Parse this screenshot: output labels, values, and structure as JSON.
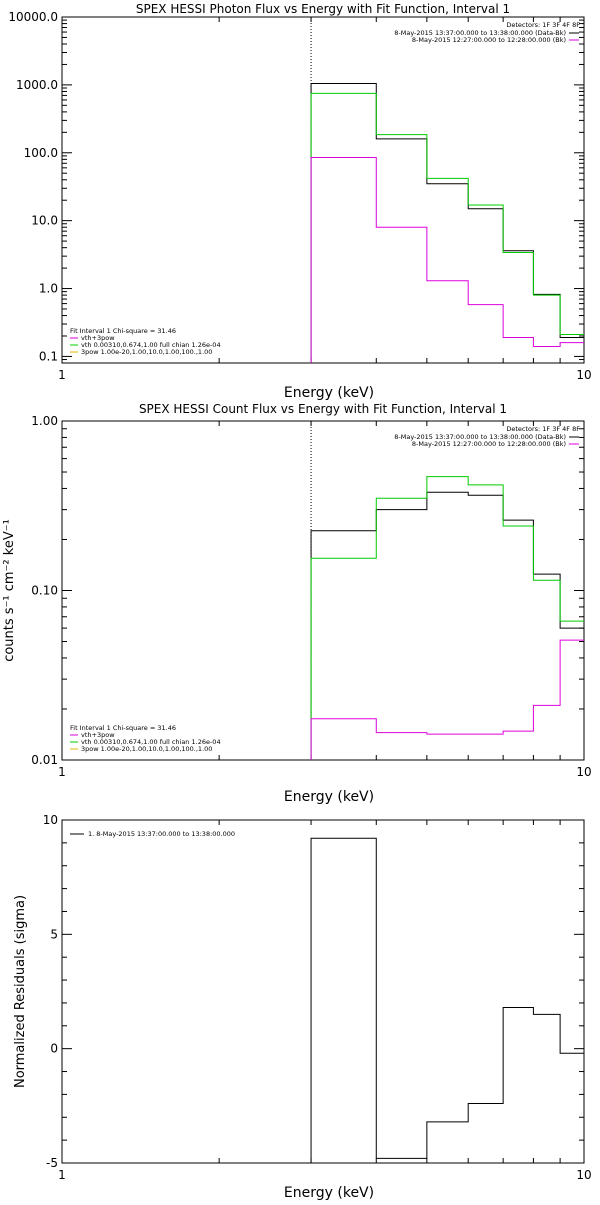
{
  "chart_data": [
    {
      "type": "line",
      "title": "SPEX HESSI Photon Flux vs Energy with Fit Function, Interval 1",
      "xlabel": "Energy (keV)",
      "ylabel": "",
      "xscale": "log",
      "yscale": "log",
      "xlim": [
        1,
        10
      ],
      "ylim": [
        0.08,
        10000
      ],
      "xticks": [
        {
          "v": 1,
          "label": "1"
        },
        {
          "v": 10,
          "label": "10"
        }
      ],
      "yticks": [
        {
          "v": 0.1,
          "label": "0.1"
        },
        {
          "v": 1,
          "label": "1.0"
        },
        {
          "v": 10,
          "label": "10.0"
        },
        {
          "v": 100,
          "label": "100.0"
        },
        {
          "v": 1000,
          "label": "1000.0"
        },
        {
          "v": 10000,
          "label": "10000.0"
        }
      ],
      "vline": 3,
      "edges": [
        3,
        4,
        5,
        6,
        7,
        8,
        9,
        10
      ],
      "series": [
        {
          "color": "#000000",
          "values": [
            1050,
            160,
            35,
            15,
            3.6,
            0.82,
            0.19
          ]
        },
        {
          "color": "#00cc00",
          "values": [
            750,
            185,
            42,
            17,
            3.4,
            0.8,
            0.21
          ]
        },
        {
          "color": "#dd00dd",
          "values": [
            85,
            8,
            1.3,
            0.58,
            0.19,
            0.14,
            0.16
          ]
        }
      ],
      "legend_header": "Detectors: 1F 3F 4F 8F",
      "legend": [
        {
          "label": "8-May-2015 13:37:00.000 to 13:38:00.000 (Data-Bk)",
          "color": "#000000"
        },
        {
          "label": "8-May-2015 12:27:00.000 to 12:28:00.000 (Bk)",
          "color": "#dd00dd"
        }
      ],
      "fit_header": "Fit Interval  1    Chi-square = 31.46",
      "fit_legend": [
        {
          "label": "vth+3pow",
          "color": "#dd00dd"
        },
        {
          "label": "vth 0.00310,0.674,1.00  full chian 1.26e-04",
          "color": "#00cc00"
        },
        {
          "label": "3pow 1.00e-20,1.00,10.0,1.00,100.,1.00",
          "color": "#e0b800"
        }
      ]
    },
    {
      "type": "line",
      "title": "SPEX HESSI Count Flux vs Energy with Fit Function, Interval 1",
      "xlabel": "Energy (keV)",
      "ylabel": "counts s⁻¹ cm⁻² keV⁻¹",
      "xscale": "log",
      "yscale": "log",
      "xlim": [
        1,
        10
      ],
      "ylim": [
        0.01,
        1.0
      ],
      "xticks": [
        {
          "v": 1,
          "label": "1"
        },
        {
          "v": 10,
          "label": "10"
        }
      ],
      "yticks": [
        {
          "v": 0.01,
          "label": "0.01"
        },
        {
          "v": 0.1,
          "label": "0.10"
        },
        {
          "v": 1.0,
          "label": "1.00"
        }
      ],
      "vline": 3,
      "edges": [
        3,
        4,
        5,
        6,
        7,
        8,
        9,
        10
      ],
      "series": [
        {
          "color": "#000000",
          "values": [
            0.225,
            0.3,
            0.38,
            0.365,
            0.26,
            0.125,
            0.06
          ]
        },
        {
          "color": "#00cc00",
          "values": [
            0.155,
            0.35,
            0.47,
            0.42,
            0.24,
            0.115,
            0.066
          ]
        },
        {
          "color": "#dd00dd",
          "values": [
            0.0175,
            0.0145,
            0.0142,
            0.0142,
            0.0148,
            0.021,
            0.051
          ]
        }
      ],
      "legend_header": "Detectors: 1F 3F 4F 8F",
      "legend": [
        {
          "label": "8-May-2015 13:37:00.000 to 13:38:00.000 (Data-Bk)",
          "color": "#000000"
        },
        {
          "label": "8-May-2015 12:27:00.000 to 12:28:00.000 (Bk)",
          "color": "#dd00dd"
        }
      ],
      "fit_header": "Fit Interval  1    Chi-square = 31.46",
      "fit_legend": [
        {
          "label": "vth+3pow",
          "color": "#dd00dd"
        },
        {
          "label": "vth 0.00310,0.674,1.00  full chian 1.26e-04",
          "color": "#00cc00"
        },
        {
          "label": "3pow 1.00e-20,1.00,10.0,1.00,100.,1.00",
          "color": "#e0b800"
        }
      ]
    },
    {
      "type": "line",
      "title": "",
      "xlabel": "Energy (keV)",
      "ylabel": "Normalized Residuals (sigma)",
      "xscale": "log",
      "yscale": "linear",
      "xlim": [
        1,
        10
      ],
      "ylim": [
        -5,
        10
      ],
      "xticks": [
        {
          "v": 1,
          "label": "1"
        },
        {
          "v": 10,
          "label": "10"
        }
      ],
      "yticks": [
        {
          "v": -5,
          "label": "-5"
        },
        {
          "v": 0,
          "label": "0"
        },
        {
          "v": 5,
          "label": "5"
        },
        {
          "v": 10,
          "label": "10"
        }
      ],
      "edges": [
        3,
        4,
        5,
        6,
        7,
        8,
        9,
        10
      ],
      "series": [
        {
          "color": "#000000",
          "values": [
            9.2,
            -4.8,
            -3.2,
            -2.4,
            1.8,
            1.5,
            -0.2
          ]
        }
      ],
      "legend": [
        {
          "label": "1.  8-May-2015 13:37:00.000 to 13:38:00.000",
          "color": "#000000"
        }
      ]
    }
  ]
}
